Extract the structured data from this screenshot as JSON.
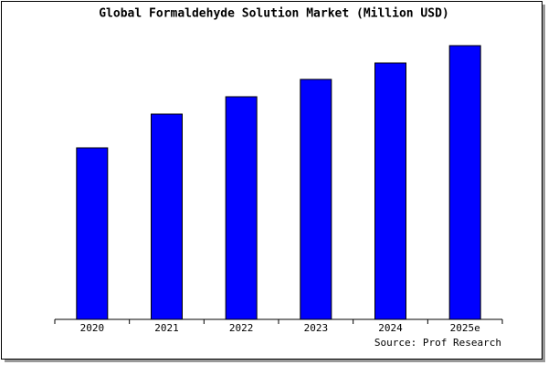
{
  "chart_data": {
    "type": "bar",
    "title": "Global Formaldehyde Solution Market (Million USD)",
    "categories": [
      "2020",
      "2021",
      "2022",
      "2023",
      "2024",
      "2025e"
    ],
    "values": [
      188,
      225,
      244,
      263,
      281,
      300
    ],
    "color": "#0000ff",
    "ylim": [
      0,
      302
    ],
    "source": "Source: Prof Research"
  }
}
